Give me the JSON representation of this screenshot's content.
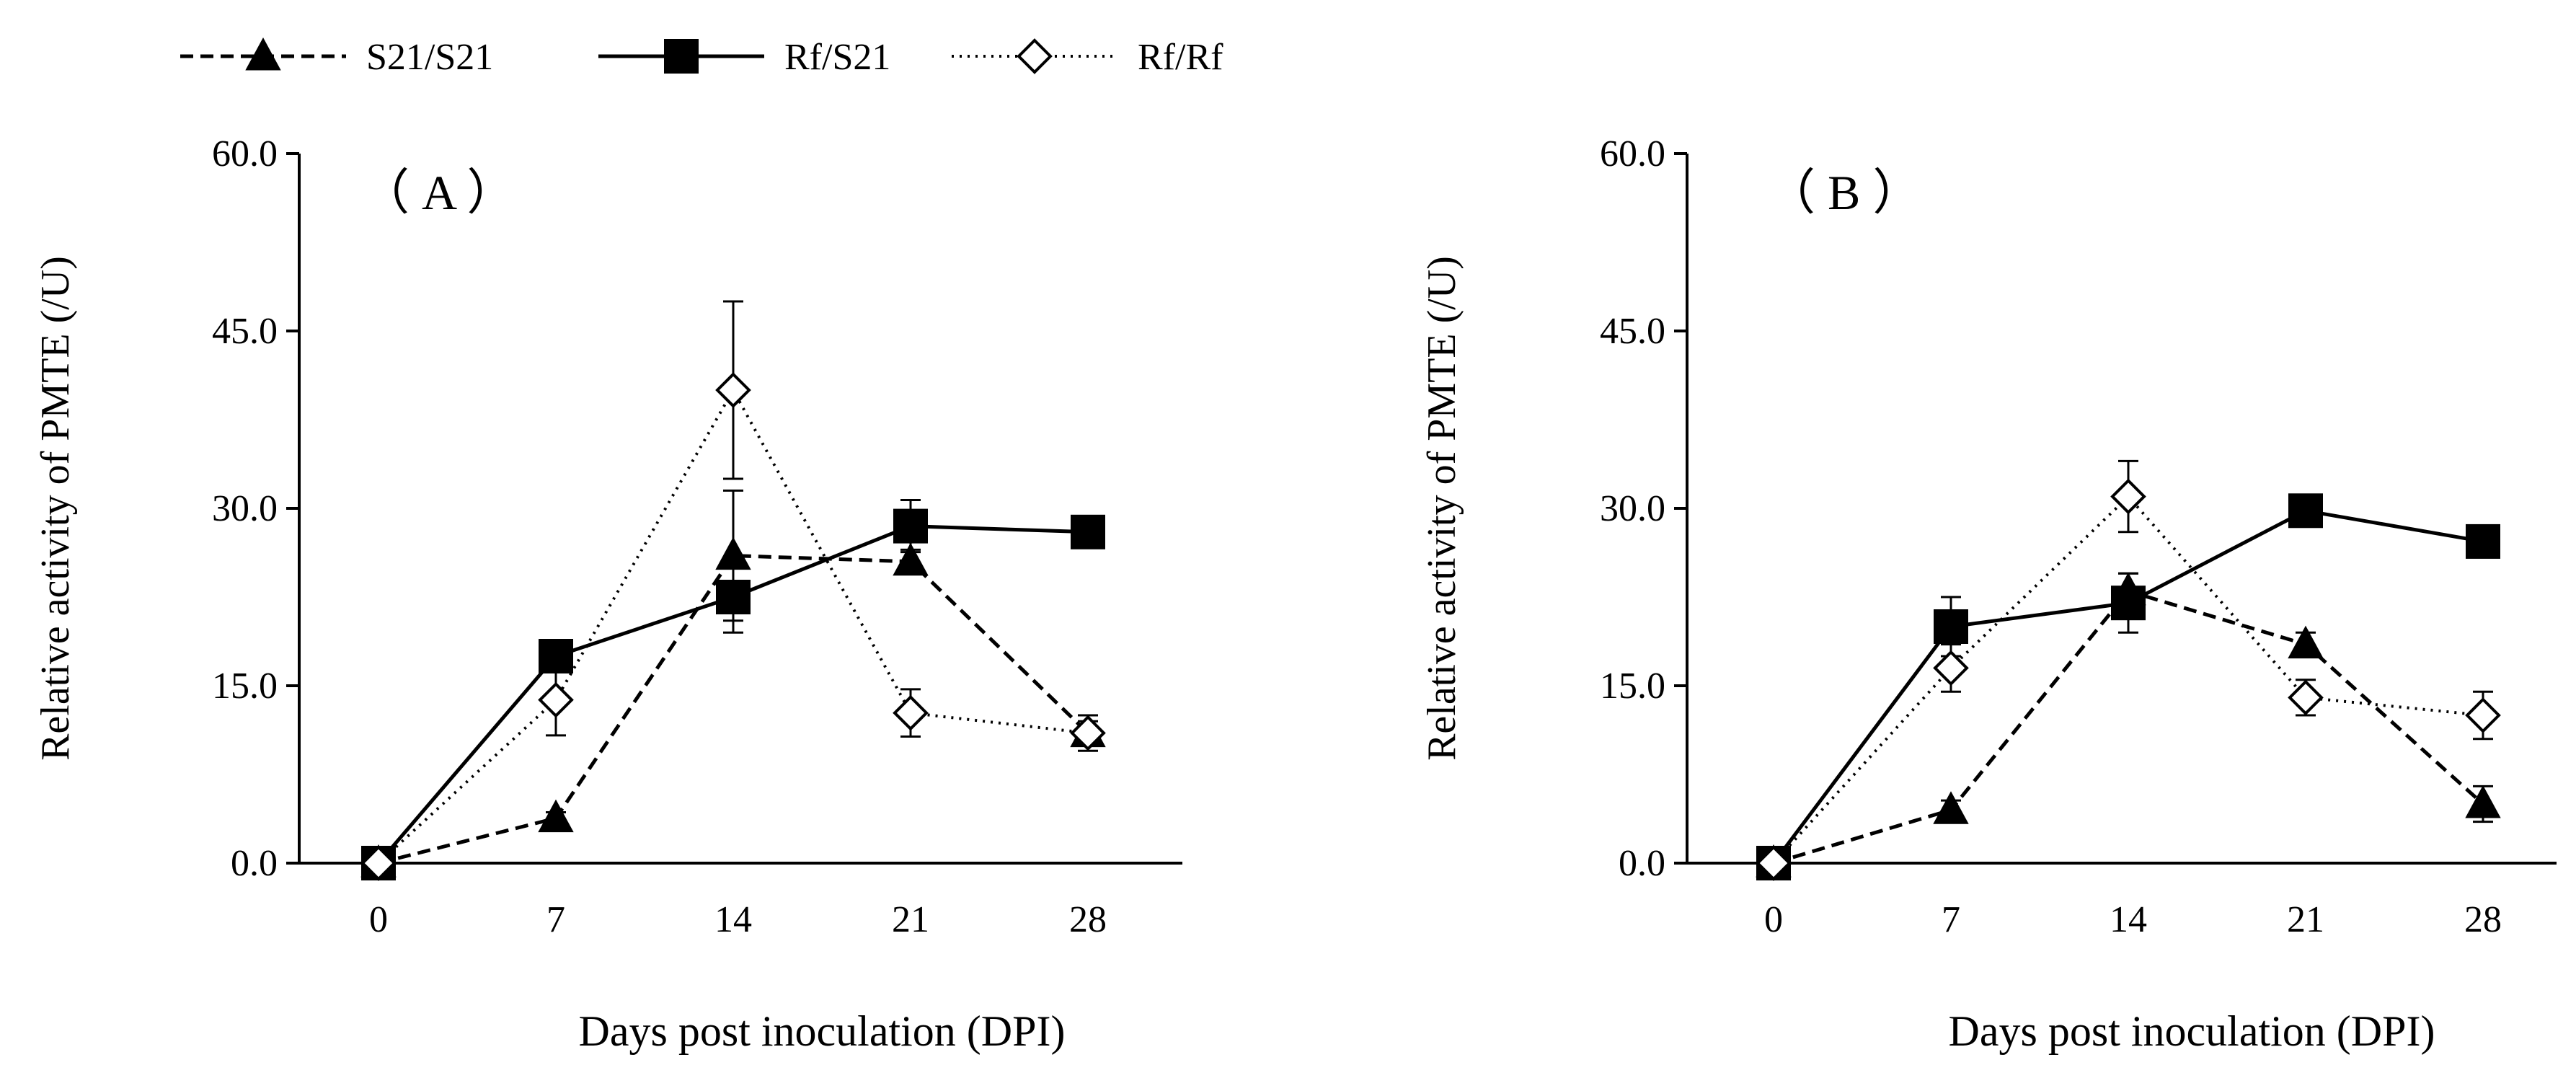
{
  "legend": [
    {
      "label": "S21/S21",
      "line": "dashed",
      "marker": "triangle"
    },
    {
      "label": "Rf/S21",
      "line": "solid",
      "marker": "square"
    },
    {
      "label": "Rf/Rf",
      "line": "dotted",
      "marker": "diamond-open"
    }
  ],
  "chart_data": [
    {
      "type": "line",
      "panel_label": "（ A ）",
      "title": "",
      "xlabel": "Days post inoculation (DPI)",
      "ylabel": "Relative activity of  PMTE (/U)",
      "categories": [
        "0",
        "7",
        "14",
        "21",
        "28"
      ],
      "yticks": [
        "0.0",
        "15.0",
        "30.0",
        "45.0",
        "60.0"
      ],
      "ylim": [
        0,
        60
      ],
      "grid": false,
      "series": [
        {
          "name": "S21/S21",
          "values": [
            0.0,
            3.8,
            26.0,
            25.5,
            11.0
          ],
          "errors": [
            0.0,
            0.5,
            5.5,
            1.0,
            1.0
          ]
        },
        {
          "name": "Rf/S21",
          "values": [
            0.0,
            17.5,
            22.5,
            28.5,
            28.0
          ],
          "errors": [
            0.0,
            1.2,
            3.0,
            2.2,
            1.0
          ]
        },
        {
          "name": "Rf/Rf",
          "values": [
            0.0,
            13.8,
            40.0,
            12.7,
            11.0
          ],
          "errors": [
            0.0,
            3.0,
            7.5,
            2.0,
            1.5
          ]
        }
      ]
    },
    {
      "type": "line",
      "panel_label": "（ B ）",
      "title": "",
      "xlabel": "Days post inoculation (DPI)",
      "ylabel": "Relative activity of  PMTE (/U)",
      "categories": [
        "0",
        "7",
        "14",
        "21",
        "28"
      ],
      "yticks": [
        "0.0",
        "15.0",
        "30.0",
        "45.0",
        "60.0"
      ],
      "ylim": [
        0,
        60
      ],
      "grid": false,
      "series": [
        {
          "name": "S21/S21",
          "values": [
            0.0,
            4.5,
            23.0,
            18.5,
            5.0
          ],
          "errors": [
            0.0,
            0.8,
            1.5,
            1.0,
            1.5
          ]
        },
        {
          "name": "Rf/S21",
          "values": [
            0.0,
            20.0,
            22.0,
            29.8,
            27.2
          ],
          "errors": [
            0.0,
            2.5,
            2.5,
            1.0,
            1.0
          ]
        },
        {
          "name": "Rf/Rf",
          "values": [
            0.0,
            16.5,
            31.0,
            14.0,
            12.5
          ],
          "errors": [
            0.0,
            2.0,
            3.0,
            1.5,
            2.0
          ]
        }
      ]
    }
  ]
}
